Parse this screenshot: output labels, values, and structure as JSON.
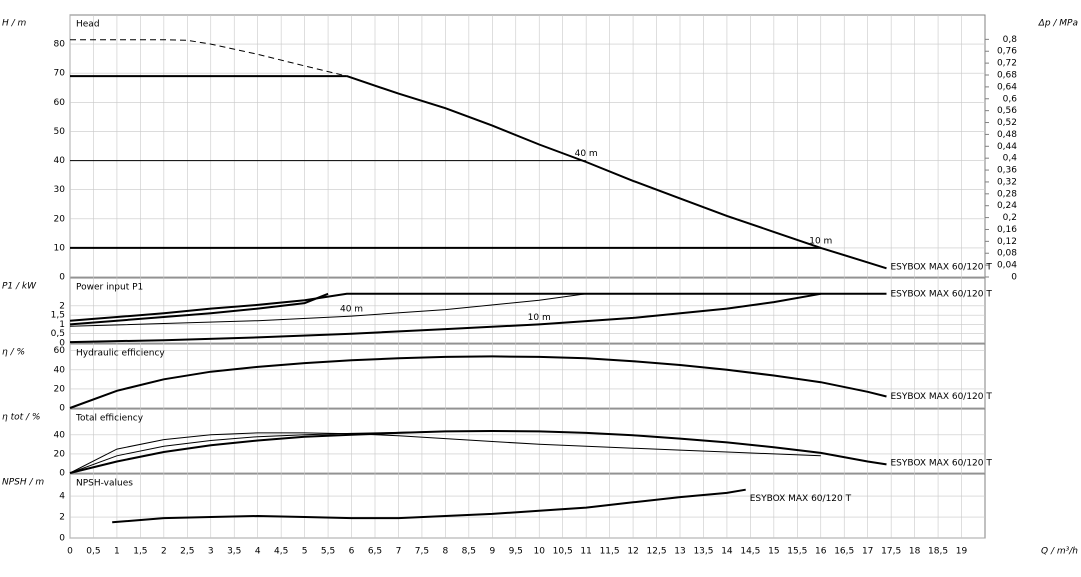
{
  "chart_data": [
    {
      "type": "line",
      "title": "Head",
      "ylabel": "H / m",
      "xlim": [
        0,
        19.5
      ],
      "ylim": [
        0,
        90
      ],
      "yticks": [
        0,
        10,
        20,
        30,
        40,
        50,
        60,
        70,
        80
      ],
      "y2label": "Δp / MPa",
      "y2lim": [
        0,
        0.882
      ],
      "y2ticks": [
        0,
        {
          "value": 0.04,
          "label": "0,04"
        },
        {
          "value": 0.08,
          "label": "0,08"
        },
        {
          "value": 0.12,
          "label": "0,12"
        },
        {
          "value": 0.16,
          "label": "0,16"
        },
        {
          "value": 0.2,
          "label": "0,2"
        },
        {
          "value": 0.24,
          "label": "0,24"
        },
        {
          "value": 0.28,
          "label": "0,28"
        },
        {
          "value": 0.32,
          "label": "0,32"
        },
        {
          "value": 0.36,
          "label": "0,36"
        },
        {
          "value": 0.4,
          "label": "0,4"
        },
        {
          "value": 0.44,
          "label": "0,44"
        },
        {
          "value": 0.48,
          "label": "0,48"
        },
        {
          "value": 0.52,
          "label": "0,52"
        },
        {
          "value": 0.56,
          "label": "0,56"
        },
        {
          "value": 0.6,
          "label": "0,6"
        },
        {
          "value": 0.64,
          "label": "0,64"
        },
        {
          "value": 0.68,
          "label": "0,68"
        },
        {
          "value": 0.72,
          "label": "0,72"
        },
        {
          "value": 0.76,
          "label": "0,76"
        },
        {
          "value": 0.8,
          "label": "0,8"
        }
      ],
      "series": [
        {
          "name": "ESYBOX MAX 60/120 T",
          "style": "thick",
          "color": "#000000",
          "x": [
            5.9,
            7,
            8,
            9,
            10,
            11,
            12,
            13,
            14,
            15,
            16,
            17,
            17.4
          ],
          "values": [
            69,
            63,
            58,
            52,
            45.5,
            39.5,
            33,
            27,
            21,
            15.5,
            10,
            5,
            3
          ]
        },
        {
          "style": "dashed",
          "color": "#000000",
          "x": [
            0,
            1,
            2,
            2.5,
            3,
            4,
            5,
            5.9
          ],
          "values": [
            81.5,
            81.5,
            81.5,
            81.3,
            80,
            76.5,
            72.5,
            69
          ]
        },
        {
          "style": "thick",
          "color": "#000000",
          "x": [
            0,
            5.9
          ],
          "values": [
            69,
            69
          ]
        },
        {
          "name": "40 m",
          "style": "thin",
          "color": "#000000",
          "x": [
            0,
            11
          ],
          "values": [
            40,
            40
          ]
        },
        {
          "name": "10 m",
          "style": "thick",
          "color": "#000000",
          "x": [
            0,
            16
          ],
          "values": [
            10,
            10
          ]
        }
      ]
    },
    {
      "type": "line",
      "title": "Power input P1",
      "ylabel": "P1 / kW",
      "xlim": [
        0,
        19.5
      ],
      "ylim": [
        0,
        3.5
      ],
      "yticks": [
        0,
        {
          "value": 0.5,
          "label": "0,5"
        },
        1,
        {
          "value": 1.5,
          "label": "1,5"
        },
        2
      ],
      "series": [
        {
          "name": "ESYBOX MAX 60/120 T",
          "style": "thick",
          "color": "#000000",
          "x": [
            0,
            1,
            2,
            3,
            4,
            5,
            5.9,
            17.4
          ],
          "values": [
            1.2,
            1.4,
            1.6,
            1.85,
            2.05,
            2.3,
            2.65,
            2.65
          ]
        },
        {
          "style": "thick",
          "color": "#000000",
          "x": [
            0,
            1,
            2,
            3,
            4,
            5,
            5.5
          ],
          "values": [
            1.0,
            1.2,
            1.4,
            1.6,
            1.85,
            2.15,
            2.65
          ]
        },
        {
          "name": "40 m",
          "style": "thin",
          "color": "#000000",
          "x": [
            0,
            2,
            4,
            6,
            8,
            10,
            11
          ],
          "values": [
            0.9,
            1.05,
            1.2,
            1.45,
            1.8,
            2.3,
            2.65
          ]
        },
        {
          "name": "10 m",
          "style": "thick",
          "color": "#000000",
          "x": [
            0,
            2,
            4,
            6,
            8,
            10,
            12,
            14,
            15,
            16
          ],
          "values": [
            0.05,
            0.15,
            0.3,
            0.5,
            0.75,
            1.0,
            1.35,
            1.85,
            2.2,
            2.65
          ]
        }
      ]
    },
    {
      "type": "line",
      "title": "Hydraulic efficiency",
      "ylabel": "η / %",
      "xlim": [
        0,
        19.5
      ],
      "ylim": [
        0,
        67
      ],
      "yticks": [
        0,
        20,
        40,
        60
      ],
      "series": [
        {
          "name": "ESYBOX MAX 60/120 T",
          "style": "thick",
          "color": "#000000",
          "x": [
            0,
            1,
            2,
            3,
            4,
            5,
            6,
            7,
            8,
            9,
            10,
            11,
            12,
            13,
            14,
            15,
            16,
            17,
            17.4
          ],
          "values": [
            0,
            18,
            30,
            38,
            43,
            47,
            50,
            52,
            53.5,
            54,
            53.5,
            52,
            49,
            45,
            40,
            34,
            27,
            17,
            12
          ]
        }
      ]
    },
    {
      "type": "line",
      "title": "Total efficiency",
      "ylabel": "η tot / %",
      "xlim": [
        0,
        19.5
      ],
      "ylim": [
        0,
        67
      ],
      "yticks": [
        0,
        20,
        40
      ],
      "series": [
        {
          "name": "ESYBOX MAX 60/120 T",
          "style": "thick",
          "color": "#000000",
          "x": [
            0,
            1,
            2,
            3,
            4,
            5,
            6,
            7,
            8,
            9,
            10,
            11,
            12,
            13,
            14,
            15,
            16,
            17,
            17.4
          ],
          "values": [
            0,
            12,
            22,
            29,
            34,
            38,
            40,
            42,
            43.5,
            44,
            43.5,
            42,
            39.5,
            36,
            32,
            27,
            21,
            12,
            9
          ]
        },
        {
          "style": "thin",
          "color": "#000000",
          "x": [
            0,
            1,
            2,
            3,
            4,
            5,
            6,
            7,
            8,
            9,
            10,
            11,
            12,
            13,
            14,
            15,
            16
          ],
          "values": [
            0,
            25,
            35,
            40,
            42,
            42,
            41,
            39,
            36,
            33,
            30,
            28,
            26,
            24,
            22,
            20,
            18
          ]
        },
        {
          "style": "thin",
          "color": "#000000",
          "x": [
            0,
            1,
            2,
            3,
            4,
            5,
            6,
            7,
            8,
            9,
            10,
            11
          ],
          "values": [
            0,
            18,
            28,
            34,
            38,
            40,
            41.5,
            42.5,
            43.5,
            44,
            43.5,
            42
          ]
        }
      ]
    },
    {
      "type": "line",
      "title": "NPSH-values",
      "ylabel": "NPSH / m",
      "xlabel": "Q / m³/h",
      "xlim": [
        0,
        19.5
      ],
      "ylim": [
        0,
        6.1
      ],
      "yticks": [
        0,
        2,
        4
      ],
      "xticks": [
        0,
        {
          "value": 0.5,
          "label": "0,5"
        },
        1,
        {
          "value": 1.5,
          "label": "1,5"
        },
        2,
        {
          "value": 2.5,
          "label": "2,5"
        },
        3,
        {
          "value": 3.5,
          "label": "3,5"
        },
        4,
        {
          "value": 4.5,
          "label": "4,5"
        },
        5,
        {
          "value": 5.5,
          "label": "5,5"
        },
        6,
        {
          "value": 6.5,
          "label": "6,5"
        },
        7,
        {
          "value": 7.5,
          "label": "7,5"
        },
        8,
        {
          "value": 8.5,
          "label": "8,5"
        },
        9,
        {
          "value": 9.5,
          "label": "9,5"
        },
        10,
        {
          "value": 10.5,
          "label": "10,5"
        },
        11,
        {
          "value": 11.5,
          "label": "11,5"
        },
        12,
        {
          "value": 12.5,
          "label": "12,5"
        },
        13,
        {
          "value": 13.5,
          "label": "13,5"
        },
        14,
        {
          "value": 14.5,
          "label": "14,5"
        },
        15,
        {
          "value": 15.5,
          "label": "15,5"
        },
        16,
        {
          "value": 16.5,
          "label": "16,5"
        },
        17,
        {
          "value": 17.5,
          "label": "17,5"
        },
        18,
        {
          "value": 18.5,
          "label": "18,5"
        },
        19
      ],
      "series": [
        {
          "name": "ESYBOX MAX 60/120 T",
          "style": "thick",
          "color": "#000000",
          "x": [
            0.9,
            2,
            3,
            4,
            5,
            6,
            7,
            8,
            9,
            10,
            11,
            12,
            13,
            14,
            14.4
          ],
          "values": [
            1.5,
            1.9,
            2.0,
            2.1,
            2.0,
            1.9,
            1.9,
            2.1,
            2.3,
            2.6,
            2.9,
            3.4,
            3.9,
            4.3,
            4.6
          ]
        }
      ]
    }
  ]
}
